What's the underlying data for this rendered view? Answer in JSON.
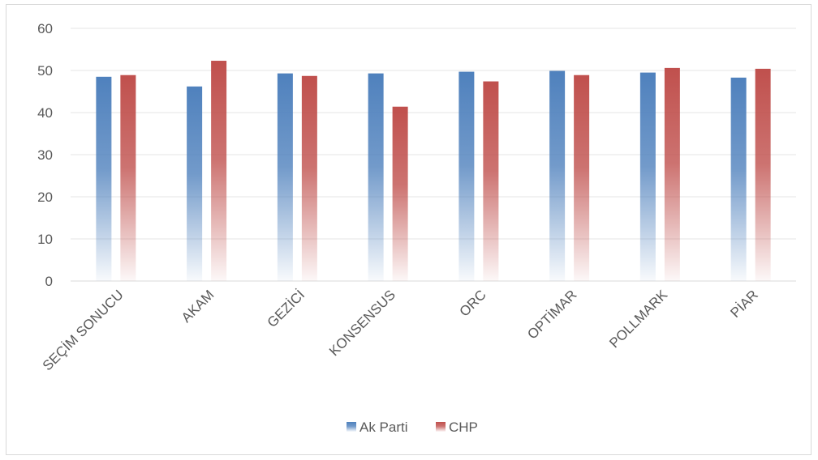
{
  "chart_data": {
    "type": "bar",
    "title": "",
    "xlabel": "",
    "ylabel": "",
    "ylim": [
      0,
      60
    ],
    "yticks": [
      0,
      10,
      20,
      30,
      40,
      50,
      60
    ],
    "grid": true,
    "legend_position": "bottom",
    "categories": [
      "SEÇİM SONUCU",
      "AKAM",
      "GEZİCİ",
      "KONSENSUS",
      "ORC",
      "OPTİMAR",
      "POLLMARK",
      "PİAR"
    ],
    "series": [
      {
        "name": "Ak Parti",
        "color": "#4f81bd",
        "values": [
          48.5,
          46.2,
          49.3,
          49.3,
          49.7,
          49.9,
          49.5,
          48.3
        ]
      },
      {
        "name": "CHP",
        "color": "#c0504d",
        "values": [
          48.9,
          52.3,
          48.7,
          41.4,
          47.4,
          48.9,
          50.6,
          50.4
        ]
      }
    ]
  }
}
